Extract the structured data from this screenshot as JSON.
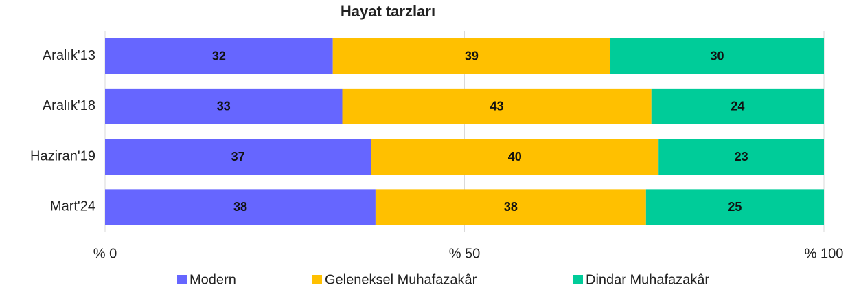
{
  "chart_data": {
    "type": "bar",
    "orientation": "horizontal",
    "stacking": "percent",
    "title": "Hayat tarzları",
    "categories": [
      "Aralık'13",
      "Aralık'18",
      "Haziran'19",
      "Mart'24"
    ],
    "series": [
      {
        "name": "Modern",
        "color": "#6666ff",
        "values": [
          32,
          33,
          37,
          38
        ]
      },
      {
        "name": "Geleneksel Muhafazakâr",
        "color": "#ffc000",
        "values": [
          39,
          43,
          40,
          38
        ]
      },
      {
        "name": "Dindar Muhafazakâr",
        "color": "#00cc99",
        "values": [
          30,
          24,
          23,
          25
        ]
      }
    ],
    "xlim": [
      0,
      100
    ],
    "xticks": [
      {
        "value": 0,
        "label": "% 0"
      },
      {
        "value": 50,
        "label": "% 50"
      },
      {
        "value": 100,
        "label": "% 100"
      }
    ],
    "grid": true,
    "legend": "bottom"
  }
}
